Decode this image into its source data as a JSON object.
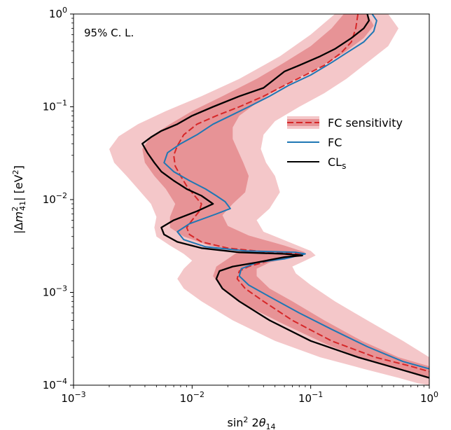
{
  "chart_data": {
    "type": "line",
    "title": "",
    "xlabel": "sin² 2θ14",
    "ylabel": "|Δm²41| [eV²]",
    "xscale": "log",
    "yscale": "log",
    "xlim": [
      0.001,
      1
    ],
    "ylim": [
      0.0001,
      1
    ],
    "x_ticks": [
      {
        "value": 0.001,
        "base": "10",
        "exp": "−3"
      },
      {
        "value": 0.01,
        "base": "10",
        "exp": "−2"
      },
      {
        "value": 0.1,
        "base": "10",
        "exp": "−1"
      },
      {
        "value": 1,
        "base": "10",
        "exp": "0"
      }
    ],
    "y_ticks": [
      {
        "value": 0.0001,
        "base": "10",
        "exp": "−4"
      },
      {
        "value": 0.001,
        "base": "10",
        "exp": "−3"
      },
      {
        "value": 0.01,
        "base": "10",
        "exp": "−2"
      },
      {
        "value": 0.1,
        "base": "10",
        "exp": "−1"
      },
      {
        "value": 1,
        "base": "10",
        "exp": "0"
      }
    ],
    "annotation": "95% C. L.",
    "legend_position": "right",
    "grid": false,
    "colors": {
      "band_outer": "#f4c7c9",
      "band_inner": "#e79396",
      "fc_sensitivity": "#d62728",
      "fc": "#1f77b4",
      "cls": "#000000"
    },
    "series": [
      {
        "name": "FC sensitivity",
        "style": "dashed",
        "points": [
          [
            0.25,
            1.0
          ],
          [
            0.24,
            0.7
          ],
          [
            0.22,
            0.5
          ],
          [
            0.18,
            0.38
          ],
          [
            0.13,
            0.28
          ],
          [
            0.09,
            0.22
          ],
          [
            0.06,
            0.17
          ],
          [
            0.04,
            0.13
          ],
          [
            0.025,
            0.1
          ],
          [
            0.016,
            0.08
          ],
          [
            0.011,
            0.065
          ],
          [
            0.0085,
            0.05
          ],
          [
            0.0075,
            0.038
          ],
          [
            0.007,
            0.03
          ],
          [
            0.0072,
            0.023
          ],
          [
            0.008,
            0.018
          ],
          [
            0.009,
            0.014
          ],
          [
            0.0105,
            0.011
          ],
          [
            0.012,
            0.009
          ],
          [
            0.0115,
            0.0075
          ],
          [
            0.01,
            0.006
          ],
          [
            0.009,
            0.005
          ],
          [
            0.0095,
            0.0042
          ],
          [
            0.012,
            0.0035
          ],
          [
            0.02,
            0.003
          ],
          [
            0.045,
            0.0027
          ],
          [
            0.088,
            0.0026
          ],
          [
            0.045,
            0.0022
          ],
          [
            0.03,
            0.0019
          ],
          [
            0.025,
            0.0017
          ],
          [
            0.024,
            0.0014
          ],
          [
            0.028,
            0.0011
          ],
          [
            0.04,
            0.0008
          ],
          [
            0.07,
            0.0005
          ],
          [
            0.15,
            0.0003
          ],
          [
            0.35,
            0.0002
          ],
          [
            0.7,
            0.00016
          ],
          [
            1.0,
            0.00014
          ]
        ]
      },
      {
        "name": "FC",
        "style": "solid",
        "points": [
          [
            0.33,
            1.0
          ],
          [
            0.36,
            0.85
          ],
          [
            0.34,
            0.65
          ],
          [
            0.28,
            0.5
          ],
          [
            0.2,
            0.38
          ],
          [
            0.15,
            0.3
          ],
          [
            0.1,
            0.22
          ],
          [
            0.065,
            0.17
          ],
          [
            0.045,
            0.13
          ],
          [
            0.03,
            0.1
          ],
          [
            0.021,
            0.08
          ],
          [
            0.015,
            0.065
          ],
          [
            0.011,
            0.05
          ],
          [
            0.008,
            0.04
          ],
          [
            0.0062,
            0.032
          ],
          [
            0.0058,
            0.025
          ],
          [
            0.007,
            0.02
          ],
          [
            0.0095,
            0.016
          ],
          [
            0.013,
            0.013
          ],
          [
            0.016,
            0.011
          ],
          [
            0.019,
            0.0095
          ],
          [
            0.021,
            0.008
          ],
          [
            0.016,
            0.007
          ],
          [
            0.0095,
            0.0055
          ],
          [
            0.0075,
            0.0045
          ],
          [
            0.0085,
            0.0037
          ],
          [
            0.013,
            0.0031
          ],
          [
            0.028,
            0.0028
          ],
          [
            0.075,
            0.0027
          ],
          [
            0.09,
            0.0026
          ],
          [
            0.06,
            0.0023
          ],
          [
            0.035,
            0.0021
          ],
          [
            0.026,
            0.0018
          ],
          [
            0.025,
            0.0015
          ],
          [
            0.03,
            0.0012
          ],
          [
            0.045,
            0.0009
          ],
          [
            0.08,
            0.0006
          ],
          [
            0.15,
            0.0004
          ],
          [
            0.3,
            0.00026
          ],
          [
            0.6,
            0.00018
          ],
          [
            1.0,
            0.00015
          ]
        ]
      },
      {
        "name": "CLs",
        "style": "solid",
        "points": [
          [
            0.3,
            1.0
          ],
          [
            0.31,
            0.85
          ],
          [
            0.28,
            0.7
          ],
          [
            0.22,
            0.55
          ],
          [
            0.16,
            0.42
          ],
          [
            0.12,
            0.35
          ],
          [
            0.08,
            0.28
          ],
          [
            0.06,
            0.24
          ],
          [
            0.05,
            0.2
          ],
          [
            0.04,
            0.16
          ],
          [
            0.025,
            0.13
          ],
          [
            0.015,
            0.1
          ],
          [
            0.01,
            0.08
          ],
          [
            0.0075,
            0.065
          ],
          [
            0.0055,
            0.055
          ],
          [
            0.0045,
            0.047
          ],
          [
            0.0038,
            0.04
          ],
          [
            0.0042,
            0.032
          ],
          [
            0.0048,
            0.025
          ],
          [
            0.0055,
            0.02
          ],
          [
            0.007,
            0.016
          ],
          [
            0.009,
            0.013
          ],
          [
            0.012,
            0.011
          ],
          [
            0.015,
            0.009
          ],
          [
            0.011,
            0.0075
          ],
          [
            0.007,
            0.006
          ],
          [
            0.0055,
            0.005
          ],
          [
            0.0058,
            0.0042
          ],
          [
            0.0075,
            0.0035
          ],
          [
            0.012,
            0.003
          ],
          [
            0.025,
            0.0027
          ],
          [
            0.06,
            0.0026
          ],
          [
            0.085,
            0.0025
          ],
          [
            0.06,
            0.0024
          ],
          [
            0.035,
            0.0021
          ],
          [
            0.022,
            0.0019
          ],
          [
            0.017,
            0.0017
          ],
          [
            0.016,
            0.0014
          ],
          [
            0.018,
            0.0011
          ],
          [
            0.025,
            0.0008
          ],
          [
            0.045,
            0.0005
          ],
          [
            0.1,
            0.0003
          ],
          [
            0.25,
            0.0002
          ],
          [
            0.55,
            0.00015
          ],
          [
            1.0,
            0.00012
          ]
        ]
      }
    ],
    "bands": [
      {
        "name": "outer",
        "color_key": "band_outer",
        "left": [
          [
            0.16,
            1.0
          ],
          [
            0.1,
            0.6
          ],
          [
            0.055,
            0.35
          ],
          [
            0.025,
            0.2
          ],
          [
            0.012,
            0.13
          ],
          [
            0.006,
            0.09
          ],
          [
            0.0035,
            0.065
          ],
          [
            0.0024,
            0.048
          ],
          [
            0.002,
            0.035
          ],
          [
            0.0022,
            0.025
          ],
          [
            0.0028,
            0.018
          ],
          [
            0.0035,
            0.013
          ],
          [
            0.0045,
            0.009
          ],
          [
            0.005,
            0.0065
          ],
          [
            0.0048,
            0.005
          ],
          [
            0.005,
            0.004
          ],
          [
            0.0065,
            0.0032
          ],
          [
            0.0085,
            0.0026
          ],
          [
            0.01,
            0.0022
          ],
          [
            0.0085,
            0.0018
          ],
          [
            0.0075,
            0.0014
          ],
          [
            0.0085,
            0.0011
          ],
          [
            0.012,
            0.0008
          ],
          [
            0.022,
            0.0005
          ],
          [
            0.05,
            0.0003
          ],
          [
            0.12,
            0.0002
          ],
          [
            0.28,
            0.00015
          ],
          [
            0.55,
            0.00012
          ],
          [
            0.8,
            0.000105
          ],
          [
            1.0,
            0.0001
          ]
        ],
        "right": [
          [
            0.45,
            1.0
          ],
          [
            0.55,
            0.7
          ],
          [
            0.45,
            0.45
          ],
          [
            0.3,
            0.3
          ],
          [
            0.2,
            0.2
          ],
          [
            0.13,
            0.14
          ],
          [
            0.08,
            0.1
          ],
          [
            0.05,
            0.07
          ],
          [
            0.04,
            0.05
          ],
          [
            0.038,
            0.035
          ],
          [
            0.042,
            0.025
          ],
          [
            0.05,
            0.018
          ],
          [
            0.055,
            0.012
          ],
          [
            0.045,
            0.008
          ],
          [
            0.035,
            0.006
          ],
          [
            0.04,
            0.0045
          ],
          [
            0.065,
            0.0035
          ],
          [
            0.1,
            0.0028
          ],
          [
            0.11,
            0.0025
          ],
          [
            0.09,
            0.0022
          ],
          [
            0.07,
            0.0019
          ],
          [
            0.075,
            0.0016
          ],
          [
            0.1,
            0.0012
          ],
          [
            0.16,
            0.0008
          ],
          [
            0.3,
            0.0005
          ],
          [
            0.6,
            0.0003
          ],
          [
            1.0,
            0.0002
          ]
        ]
      },
      {
        "name": "inner",
        "color_key": "band_inner",
        "left": [
          [
            0.19,
            1.0
          ],
          [
            0.15,
            0.7
          ],
          [
            0.1,
            0.45
          ],
          [
            0.06,
            0.3
          ],
          [
            0.035,
            0.2
          ],
          [
            0.018,
            0.13
          ],
          [
            0.01,
            0.09
          ],
          [
            0.0065,
            0.065
          ],
          [
            0.0045,
            0.048
          ],
          [
            0.0038,
            0.035
          ],
          [
            0.004,
            0.025
          ],
          [
            0.0048,
            0.018
          ],
          [
            0.006,
            0.013
          ],
          [
            0.0072,
            0.009
          ],
          [
            0.0065,
            0.0065
          ],
          [
            0.0065,
            0.005
          ],
          [
            0.0085,
            0.004
          ],
          [
            0.014,
            0.0032
          ],
          [
            0.025,
            0.0028
          ],
          [
            0.02,
            0.0023
          ],
          [
            0.016,
            0.0019
          ],
          [
            0.015,
            0.0015
          ],
          [
            0.018,
            0.0011
          ],
          [
            0.03,
            0.0007
          ],
          [
            0.06,
            0.00045
          ],
          [
            0.14,
            0.00027
          ],
          [
            0.32,
            0.00018
          ],
          [
            0.65,
            0.00014
          ],
          [
            1.0,
            0.00012
          ]
        ],
        "right": [
          [
            0.3,
            1.0
          ],
          [
            0.34,
            0.75
          ],
          [
            0.28,
            0.55
          ],
          [
            0.19,
            0.38
          ],
          [
            0.12,
            0.27
          ],
          [
            0.075,
            0.2
          ],
          [
            0.05,
            0.15
          ],
          [
            0.035,
            0.11
          ],
          [
            0.025,
            0.08
          ],
          [
            0.022,
            0.06
          ],
          [
            0.022,
            0.045
          ],
          [
            0.024,
            0.035
          ],
          [
            0.027,
            0.025
          ],
          [
            0.03,
            0.018
          ],
          [
            0.028,
            0.012
          ],
          [
            0.022,
            0.009
          ],
          [
            0.018,
            0.0068
          ],
          [
            0.02,
            0.0052
          ],
          [
            0.03,
            0.0041
          ],
          [
            0.06,
            0.0032
          ],
          [
            0.09,
            0.0027
          ],
          [
            0.07,
            0.0024
          ],
          [
            0.045,
            0.0021
          ],
          [
            0.035,
            0.0018
          ],
          [
            0.035,
            0.0015
          ],
          [
            0.045,
            0.0011
          ],
          [
            0.07,
            0.0008
          ],
          [
            0.13,
            0.0005
          ],
          [
            0.27,
            0.0003
          ],
          [
            0.55,
            0.0002
          ],
          [
            1.0,
            0.00016
          ]
        ]
      }
    ]
  }
}
